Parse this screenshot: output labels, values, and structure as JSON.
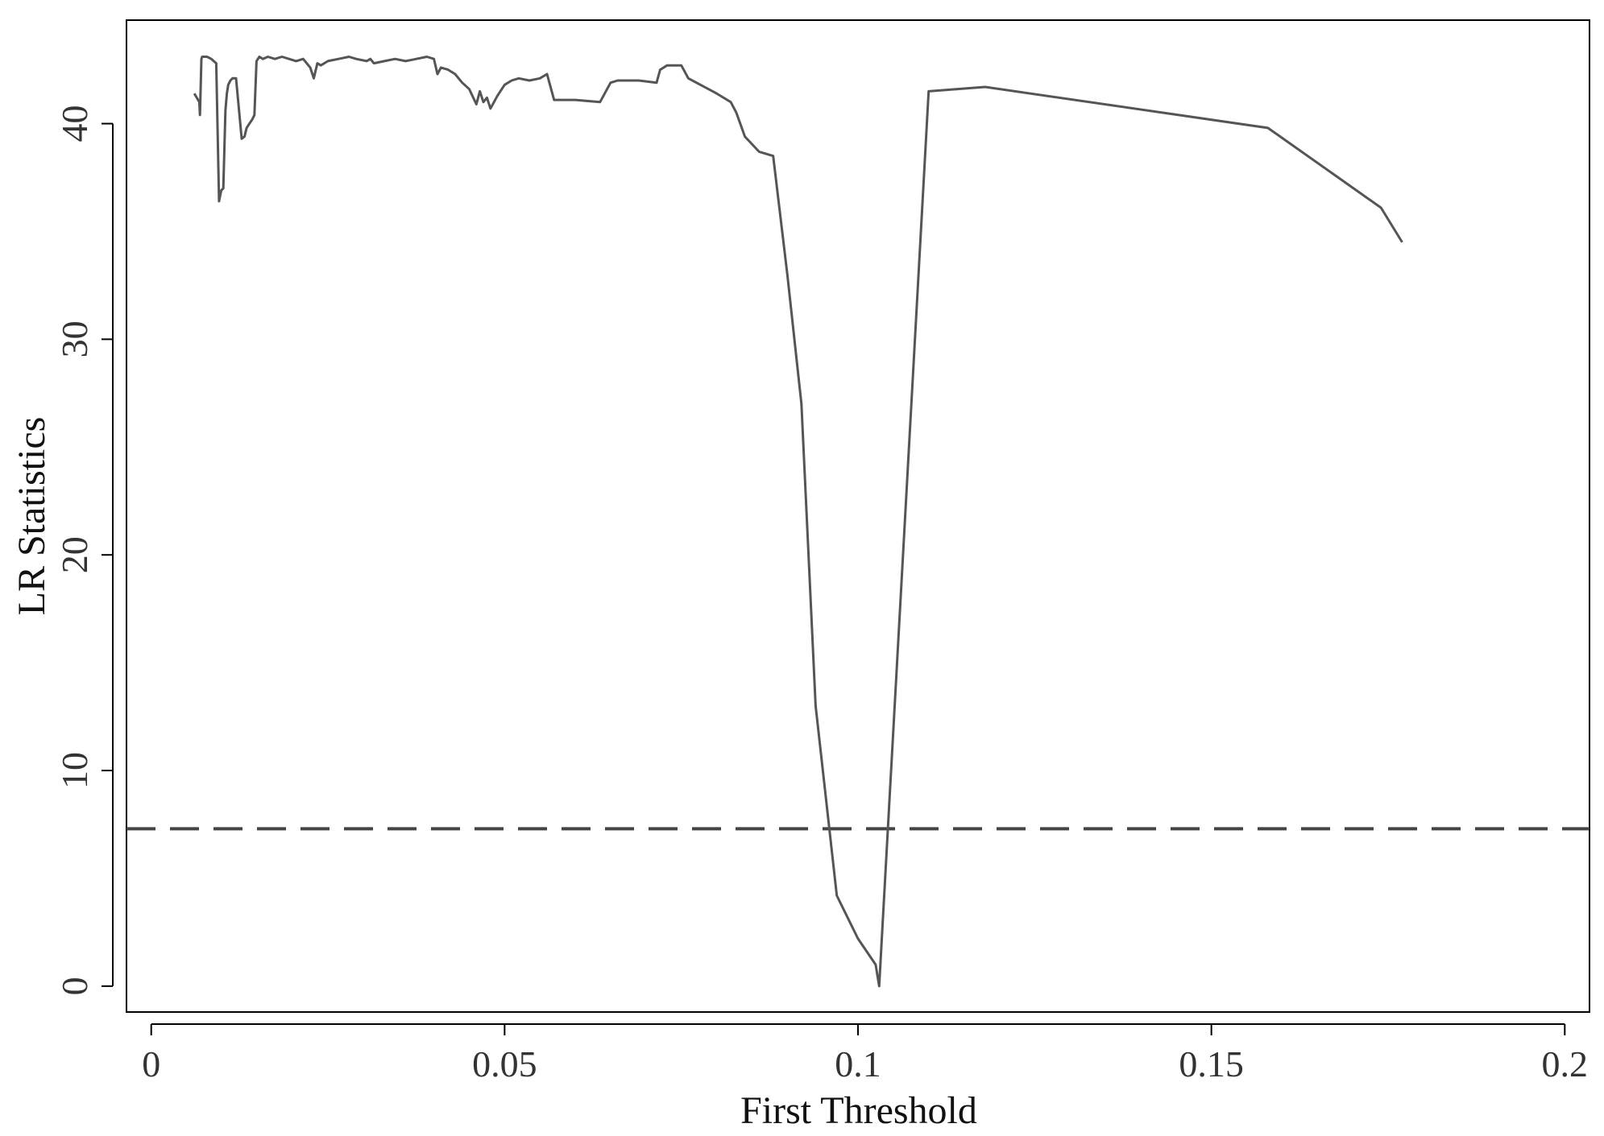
{
  "chart_data": {
    "type": "line",
    "title": "",
    "xlabel": "First Threshold",
    "ylabel": "LR Statistics",
    "xlim": [
      -0.0035,
      0.2035
    ],
    "ylim": [
      -1.2,
      44.8
    ],
    "x_ticks": [
      0,
      0.05,
      0.1,
      0.15,
      0.2
    ],
    "x_tick_labels": [
      "0",
      "0.05",
      "0.1",
      "0.15",
      "0.2"
    ],
    "y_ticks": [
      0,
      10,
      20,
      30,
      40
    ],
    "y_tick_labels": [
      "0",
      "10",
      "20",
      "30",
      "40"
    ],
    "grid": false,
    "reference_line": {
      "y": 7.3,
      "style": "dashed"
    },
    "series": [
      {
        "color": "#555555",
        "x": [
          0.0061,
          0.0068,
          0.0069,
          0.0071,
          0.0072,
          0.0079,
          0.0085,
          0.0092,
          0.0096,
          0.0099,
          0.0102,
          0.0105,
          0.0107,
          0.0109,
          0.0112,
          0.0115,
          0.012,
          0.0128,
          0.0132,
          0.0135,
          0.0139,
          0.0143,
          0.0146,
          0.0149,
          0.0153,
          0.0158,
          0.0165,
          0.0175,
          0.0185,
          0.0195,
          0.0205,
          0.0215,
          0.0225,
          0.023,
          0.0235,
          0.024,
          0.025,
          0.0265,
          0.028,
          0.029,
          0.0305,
          0.031,
          0.0315,
          0.033,
          0.0345,
          0.036,
          0.0375,
          0.039,
          0.04,
          0.0405,
          0.041,
          0.042,
          0.043,
          0.044,
          0.045,
          0.046,
          0.0465,
          0.047,
          0.0475,
          0.048,
          0.049,
          0.05,
          0.051,
          0.052,
          0.0535,
          0.055,
          0.056,
          0.057,
          0.06,
          0.0635,
          0.065,
          0.066,
          0.068,
          0.069,
          0.0715,
          0.072,
          0.073,
          0.075,
          0.076,
          0.08,
          0.082,
          0.0828,
          0.084,
          0.086,
          0.088,
          0.09,
          0.092,
          0.094,
          0.097,
          0.1,
          0.1025,
          0.103,
          0.11,
          0.118,
          0.158,
          0.174,
          0.177
        ],
        "y": [
          41.4,
          41.0,
          40.4,
          43.0,
          43.1,
          43.1,
          43.0,
          42.8,
          36.4,
          36.9,
          37.0,
          40.6,
          41.4,
          41.8,
          42.0,
          42.1,
          42.1,
          39.3,
          39.4,
          39.8,
          40.0,
          40.2,
          40.4,
          42.9,
          43.1,
          43.0,
          43.1,
          43.0,
          43.1,
          43.0,
          42.9,
          43.0,
          42.6,
          42.1,
          42.8,
          42.7,
          42.9,
          43.0,
          43.1,
          43.0,
          42.9,
          43.0,
          42.8,
          42.9,
          43.0,
          42.9,
          43.0,
          43.1,
          43.0,
          42.3,
          42.6,
          42.5,
          42.3,
          41.9,
          41.6,
          40.9,
          41.5,
          41.0,
          41.2,
          40.7,
          41.3,
          41.8,
          42.0,
          42.1,
          42.0,
          42.1,
          42.3,
          41.1,
          41.1,
          41.0,
          41.9,
          42.0,
          42.0,
          42.0,
          41.9,
          42.5,
          42.7,
          42.7,
          42.1,
          41.4,
          41.0,
          40.5,
          39.4,
          38.7,
          38.5,
          33.0,
          27.0,
          13.0,
          4.2,
          2.2,
          1.0,
          0.0,
          41.5,
          41.7,
          39.8,
          36.1,
          34.5
        ]
      }
    ]
  }
}
